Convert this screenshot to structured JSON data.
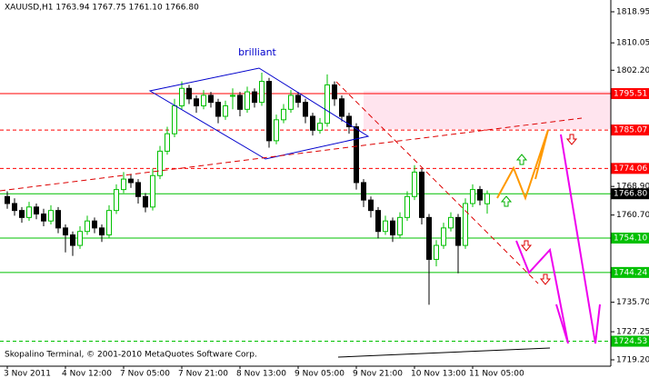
{
  "chart_data": {
    "type": "candlestick",
    "title": "XAUUSD,H1  1763.94 1767.75 1761.10 1766.80",
    "footer": "Skopalino Terminal, © 2001-2010 MetaQuotes Software Corp.",
    "annotation": "brilliant",
    "bull_color": "#00c000",
    "bear_color": "#000000",
    "ylim": [
      1717.38,
      1822.33
    ],
    "yticks": [
      1818.95,
      1810.05,
      {
        "value": 1802.2,
        "label": "1802.20"
      },
      {
        "value": 1768.9,
        "label": "1768.90"
      },
      {
        "value": 1760.7,
        "label": "1760.70"
      },
      {
        "value": 1735.7,
        "label": "1735.70"
      },
      1727.25,
      {
        "value": 1719.2,
        "label": "1719.20"
      }
    ],
    "categories": [
      "3 Nov 2011",
      null,
      null,
      null,
      null,
      null,
      null,
      null,
      "4 Nov 12:00",
      null,
      null,
      null,
      null,
      null,
      null,
      null,
      "7 Nov 05:00",
      null,
      null,
      null,
      null,
      null,
      null,
      null,
      "7 Nov 21:00",
      null,
      null,
      null,
      null,
      null,
      null,
      null,
      "8 Nov 13:00",
      null,
      null,
      null,
      null,
      null,
      null,
      null,
      "9 Nov 05:00",
      null,
      null,
      null,
      null,
      null,
      null,
      null,
      "9 Nov 21:00",
      null,
      null,
      null,
      null,
      null,
      null,
      null,
      "10 Nov 13:00",
      null,
      null,
      null,
      null,
      null,
      null,
      null,
      "11 Nov 05:00",
      null,
      null
    ],
    "ohlc": [
      [
        1766,
        1767.5,
        1762.5,
        1764
      ],
      [
        1764,
        1765.5,
        1760.5,
        1762
      ],
      [
        1762,
        1763,
        1758.5,
        1760
      ],
      [
        1760,
        1764.5,
        1759,
        1763
      ],
      [
        1763,
        1764,
        1759.5,
        1761
      ],
      [
        1761,
        1762.5,
        1757.5,
        1759
      ],
      [
        1759,
        1763.5,
        1758,
        1762
      ],
      [
        1762,
        1763,
        1755.5,
        1757
      ],
      [
        1757,
        1758,
        1750,
        1755
      ],
      [
        1755,
        1756,
        1749,
        1752
      ],
      [
        1752,
        1757.5,
        1751,
        1756
      ],
      [
        1756,
        1760.5,
        1755,
        1759
      ],
      [
        1759,
        1760,
        1755.5,
        1757
      ],
      [
        1757,
        1758,
        1753,
        1755
      ],
      [
        1755,
        1763.5,
        1754,
        1762
      ],
      [
        1762,
        1769.5,
        1761,
        1768
      ],
      [
        1768,
        1773,
        1767,
        1771
      ],
      [
        1771,
        1772.5,
        1768.5,
        1770
      ],
      [
        1770,
        1771,
        1764,
        1766
      ],
      [
        1766,
        1767,
        1761.5,
        1763
      ],
      [
        1763,
        1774,
        1762,
        1772
      ],
      [
        1772,
        1780.5,
        1771,
        1779
      ],
      [
        1779,
        1786,
        1778,
        1784
      ],
      [
        1784,
        1794,
        1783,
        1792
      ],
      [
        1792,
        1799,
        1791,
        1797
      ],
      [
        1797,
        1798,
        1792.5,
        1794
      ],
      [
        1794,
        1795,
        1790,
        1792
      ],
      [
        1792,
        1796.5,
        1791,
        1795
      ],
      [
        1795,
        1796,
        1791.5,
        1793
      ],
      [
        1793,
        1794,
        1787,
        1789
      ],
      [
        1789,
        1793.5,
        1788,
        1792
      ],
      [
        1795,
        1797,
        1791,
        1795
      ],
      [
        1795,
        1796,
        1789,
        1791
      ],
      [
        1791,
        1797.5,
        1790,
        1796
      ],
      [
        1796,
        1797,
        1791.5,
        1793
      ],
      [
        1793,
        1801.5,
        1792,
        1799
      ],
      [
        1799,
        1800,
        1780,
        1782
      ],
      [
        1782,
        1789.5,
        1781,
        1788
      ],
      [
        1788,
        1792.5,
        1787,
        1791
      ],
      [
        1791,
        1796.5,
        1790,
        1795
      ],
      [
        1795,
        1796,
        1791.5,
        1793
      ],
      [
        1793,
        1794,
        1787,
        1789
      ],
      [
        1789,
        1790,
        1783.5,
        1785
      ],
      [
        1785,
        1788.5,
        1784,
        1787
      ],
      [
        1787,
        1801,
        1786,
        1798
      ],
      [
        1798,
        1799,
        1792,
        1794
      ],
      [
        1794,
        1795,
        1787.5,
        1789
      ],
      [
        1789,
        1790,
        1784,
        1786
      ],
      [
        1786,
        1787,
        1768,
        1770
      ],
      [
        1770,
        1771,
        1763,
        1765
      ],
      [
        1765,
        1766,
        1760,
        1762
      ],
      [
        1762,
        1763,
        1754,
        1756
      ],
      [
        1756,
        1760.5,
        1755,
        1759
      ],
      [
        1759,
        1760,
        1753,
        1755
      ],
      [
        1755,
        1761.5,
        1754,
        1760
      ],
      [
        1760,
        1767.5,
        1759,
        1766
      ],
      [
        1766,
        1775,
        1765,
        1773
      ],
      [
        1773,
        1774,
        1758,
        1760
      ],
      [
        1760,
        1761,
        1735,
        1748
      ],
      [
        1748,
        1753.5,
        1746,
        1752
      ],
      [
        1752,
        1758.5,
        1751,
        1757
      ],
      [
        1757,
        1761.5,
        1756,
        1760
      ],
      [
        1760,
        1761,
        1744,
        1752
      ],
      [
        1752,
        1765.5,
        1751,
        1764
      ],
      [
        1764,
        1769.5,
        1763,
        1768
      ],
      [
        1768,
        1769,
        1763.5,
        1765
      ],
      [
        1763.94,
        1767.75,
        1761.1,
        1766.8
      ]
    ],
    "levels": [
      {
        "value": 1795.51,
        "color": "#ff0000",
        "style": "solid"
      },
      {
        "value": 1785.07,
        "color": "#ff0000",
        "style": "dashed"
      },
      {
        "value": 1774.06,
        "color": "#ff0000",
        "style": "dashed"
      },
      {
        "value": 1766.8,
        "label": "1766.80",
        "color": "#00c000",
        "label_color": "#000000",
        "style": "solid"
      },
      {
        "value": 1754.1,
        "label": "1754.10",
        "color": "#00c000",
        "style": "solid"
      },
      {
        "value": 1744.24,
        "color": "#00c000",
        "style": "solid"
      },
      {
        "value": 1724.53,
        "color": "#00c000",
        "style": "dashed"
      }
    ]
  }
}
